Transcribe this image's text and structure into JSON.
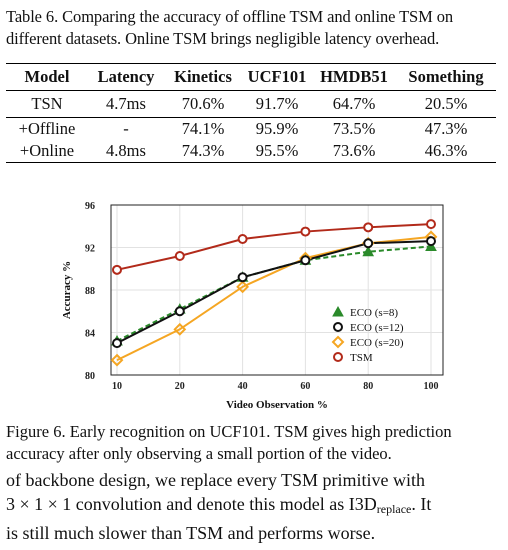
{
  "table": {
    "caption": "Table 6. Comparing the accuracy of offline TSM and online TSM on different datasets. Online TSM brings negligible latency overhead.",
    "headers": [
      "Model",
      "Latency",
      "Kinetics",
      "UCF101",
      "HMDB51",
      "Something"
    ],
    "rows": [
      [
        "TSN",
        "4.7ms",
        "70.6%",
        "91.7%",
        "64.7%",
        "20.5%"
      ],
      [
        "+Offline",
        "-",
        "74.1%",
        "95.9%",
        "73.5%",
        "47.3%"
      ],
      [
        "+Online",
        "4.8ms",
        "74.3%",
        "95.5%",
        "73.6%",
        "46.3%"
      ]
    ]
  },
  "figure": {
    "caption": "Figure 6. Early recognition on UCF101. TSM gives high prediction accuracy after only observing a small portion of the video."
  },
  "body": {
    "line1": "of backbone design, we replace every TSM primitive with",
    "line2_pre": "3 × 1 × 1 convolution and denote this model as I3D",
    "line2_sub": "replace",
    "line2_post": ". It",
    "line3": "is still much slower than TSM and performs worse."
  },
  "chart_data": {
    "type": "line",
    "xlabel": "Video Observation %",
    "ylabel": "Accuracy %",
    "x": [
      10,
      20,
      40,
      60,
      80,
      100
    ],
    "x_ticks": [
      "10",
      "20",
      "40",
      "60",
      "80",
      "100"
    ],
    "y_ticks": [
      80,
      84,
      88,
      92,
      96
    ],
    "ylim": [
      80,
      96
    ],
    "legend_position": "bottom-right",
    "series": [
      {
        "name": "ECO (s=8)",
        "color": "#2a8a2a",
        "marker": "triangle",
        "dashed": true,
        "values": [
          83.2,
          86.2,
          89.2,
          90.8,
          91.6,
          92.1
        ]
      },
      {
        "name": "ECO (s=12)",
        "color": "#111111",
        "marker": "circle",
        "dashed": false,
        "values": [
          83.0,
          86.0,
          89.2,
          90.8,
          92.4,
          92.6
        ]
      },
      {
        "name": "ECO (s=20)",
        "color": "#f5a623",
        "marker": "diamond",
        "dashed": false,
        "values": [
          81.4,
          84.3,
          88.3,
          91.0,
          92.4,
          93.0
        ]
      },
      {
        "name": "TSM",
        "color": "#b22a1a",
        "marker": "circle",
        "dashed": false,
        "values": [
          89.9,
          91.2,
          92.8,
          93.5,
          93.9,
          94.2
        ]
      }
    ]
  }
}
